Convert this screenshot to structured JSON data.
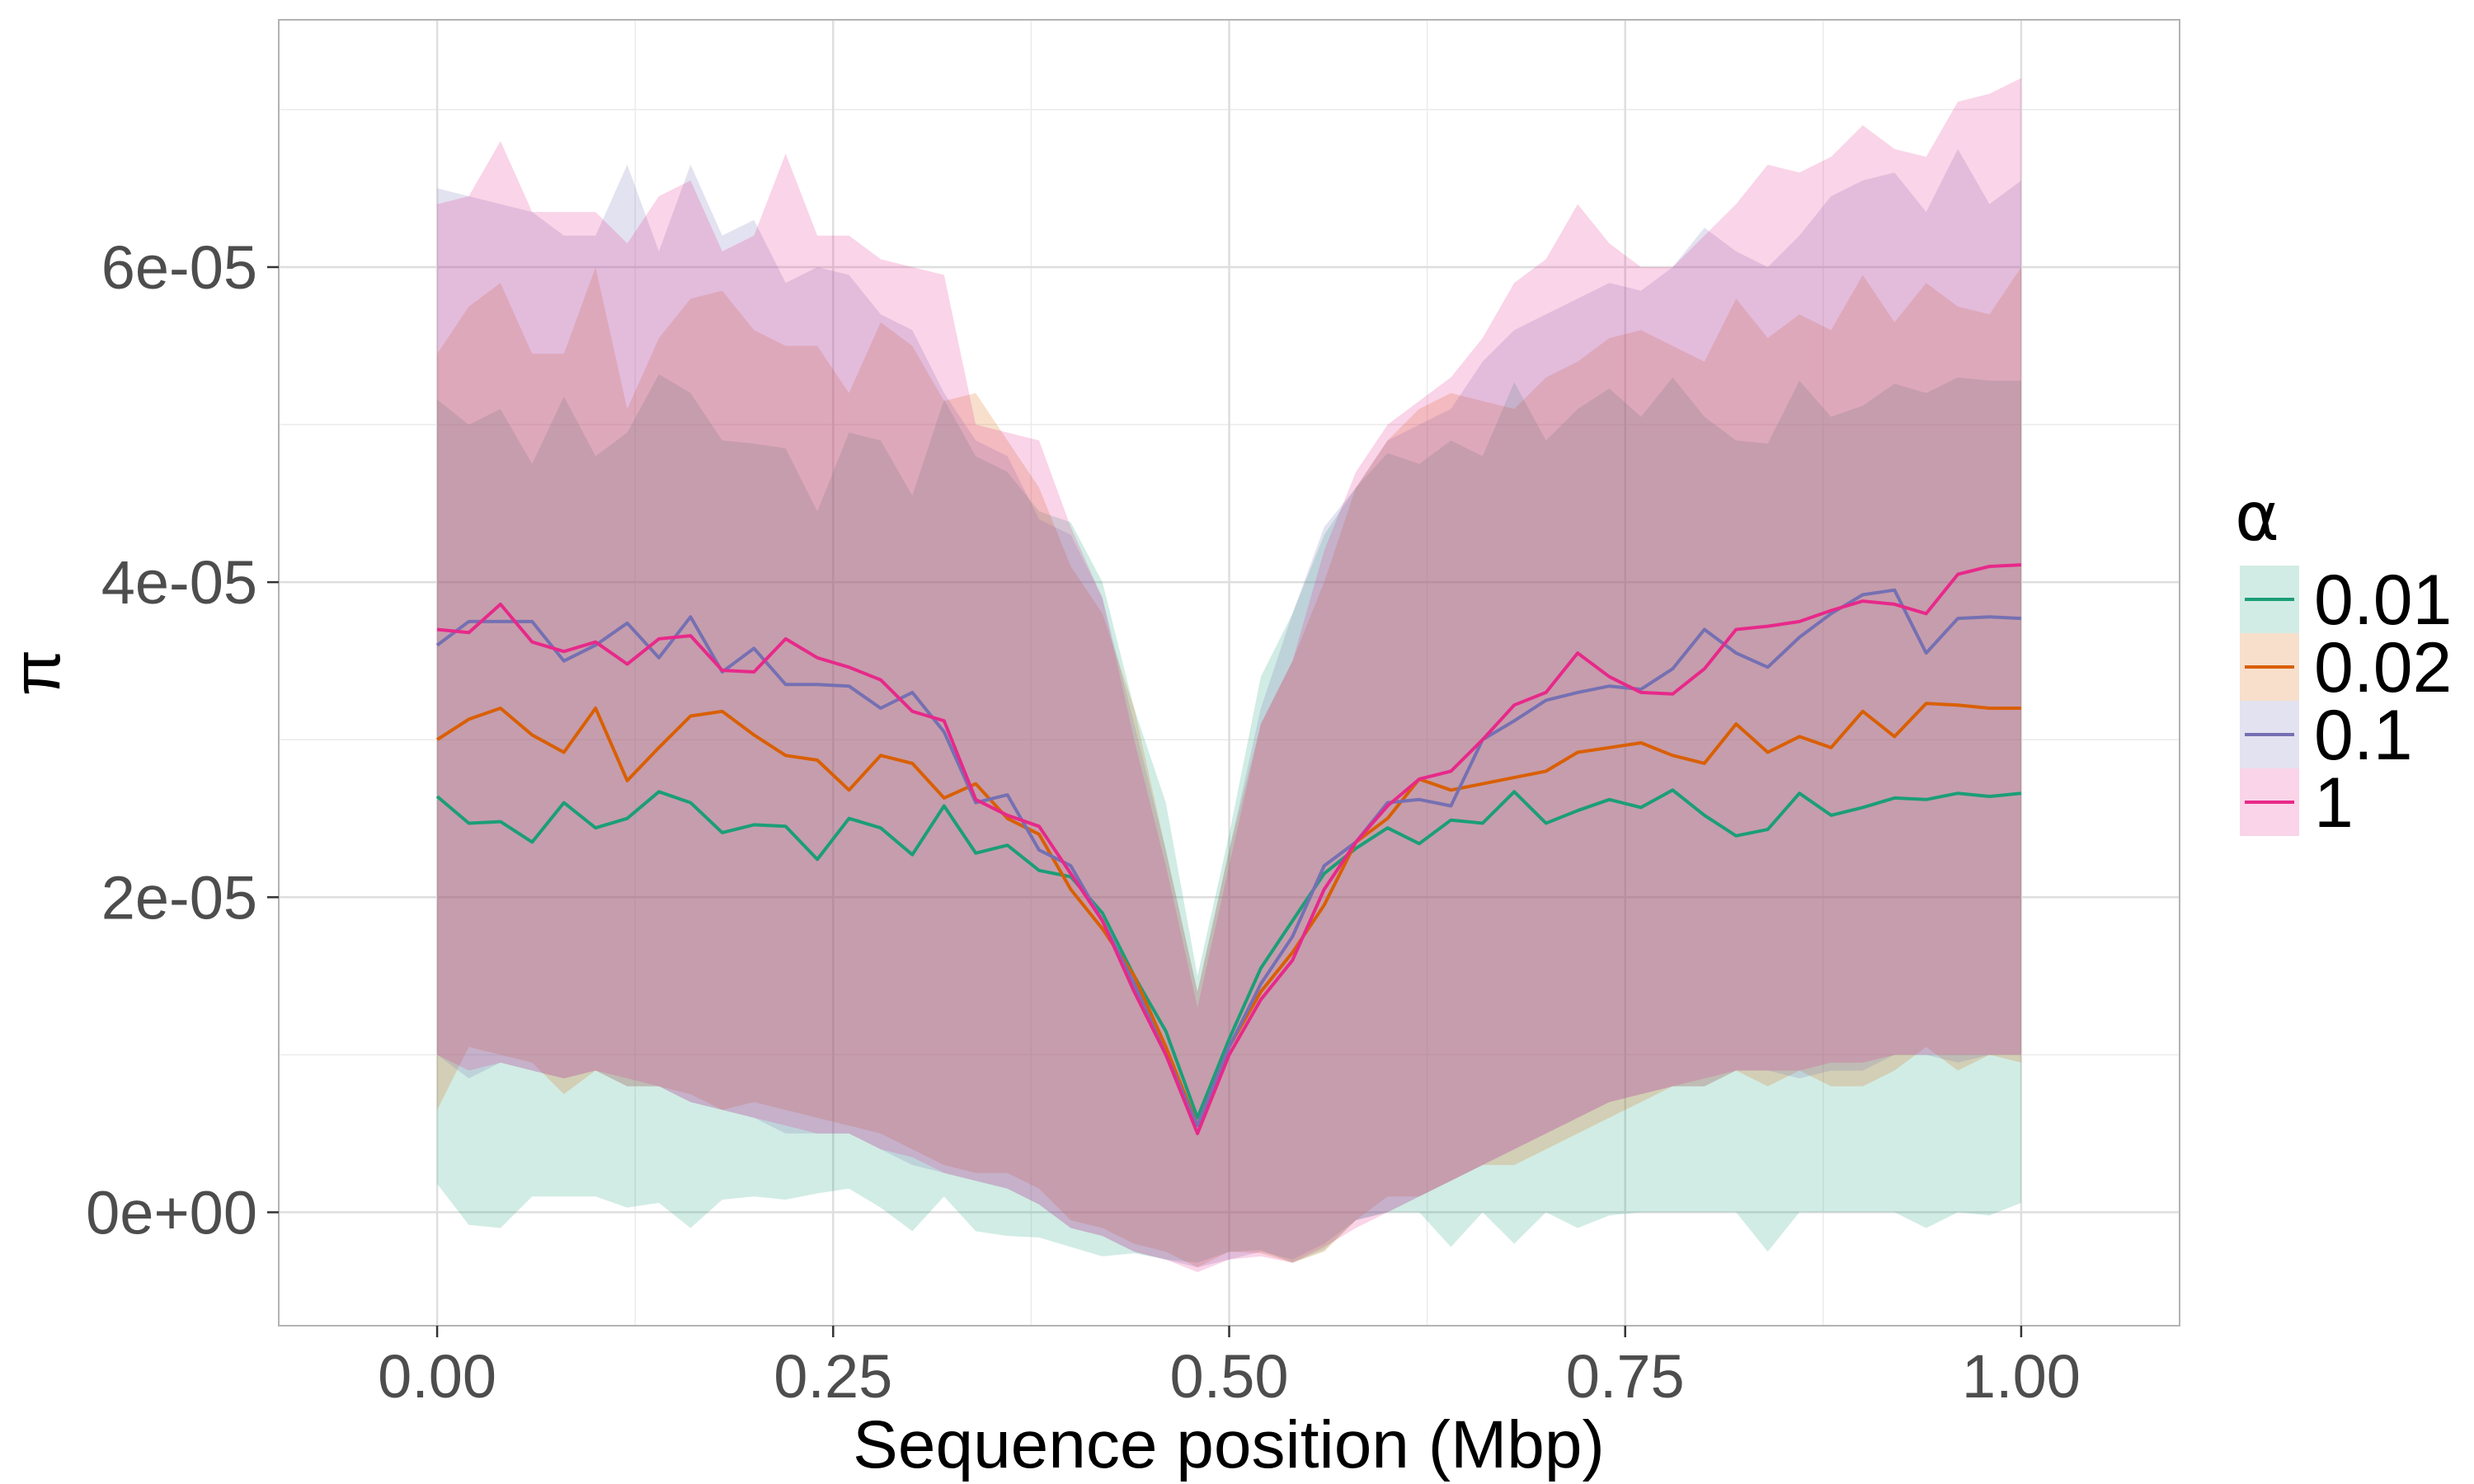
{
  "chart_data": {
    "type": "line",
    "title": "",
    "xlabel": "Sequence position (Mbp)",
    "ylabel": "π",
    "xlim": [
      -0.1,
      1.1
    ],
    "ylim": [
      -7.2e-06,
      7.57e-05
    ],
    "x_ticks": [
      0,
      0.25,
      0.5,
      0.75,
      1
    ],
    "x_tick_labels": [
      "0.00",
      "0.25",
      "0.50",
      "0.75",
      "1.00"
    ],
    "y_ticks": [
      0,
      2e-05,
      4e-05,
      6e-05
    ],
    "y_tick_labels": [
      "0e+00",
      "2e-05",
      "4e-05",
      "6e-05"
    ],
    "grid": true,
    "legend_title": "α",
    "legend_position": "right",
    "x": [
      0.0,
      0.02,
      0.04,
      0.06,
      0.08,
      0.1,
      0.12,
      0.14,
      0.16,
      0.18,
      0.2,
      0.22,
      0.24,
      0.26,
      0.28,
      0.3,
      0.32,
      0.34,
      0.36,
      0.38,
      0.4,
      0.42,
      0.44,
      0.46,
      0.48,
      0.5,
      0.52,
      0.54,
      0.56,
      0.58,
      0.6,
      0.62,
      0.64,
      0.66,
      0.68,
      0.7,
      0.72,
      0.74,
      0.76,
      0.78,
      0.8,
      0.82,
      0.84,
      0.86,
      0.88,
      0.9,
      0.92,
      0.94,
      0.96,
      0.98,
      1.0
    ],
    "series": [
      {
        "name": "0.01",
        "color": "#1b9e77",
        "values": [
          2.64e-05,
          2.47e-05,
          2.48e-05,
          2.35e-05,
          2.6e-05,
          2.44e-05,
          2.5e-05,
          2.67e-05,
          2.6e-05,
          2.41e-05,
          2.46e-05,
          2.45e-05,
          2.24e-05,
          2.5e-05,
          2.44e-05,
          2.27e-05,
          2.58e-05,
          2.28e-05,
          2.33e-05,
          2.17e-05,
          2.13e-05,
          1.9e-05,
          1.5e-05,
          1.15e-05,
          6e-06,
          1.1e-05,
          1.55e-05,
          1.85e-05,
          2.15e-05,
          2.31e-05,
          2.44e-05,
          2.34e-05,
          2.49e-05,
          2.47e-05,
          2.67e-05,
          2.47e-05,
          2.55e-05,
          2.62e-05,
          2.57e-05,
          2.68e-05,
          2.52e-05,
          2.39e-05,
          2.43e-05,
          2.66e-05,
          2.52e-05,
          2.57e-05,
          2.63e-05,
          2.62e-05,
          2.66e-05,
          2.64e-05,
          2.66e-05
        ],
        "lower": [
          1.8e-06,
          -8e-07,
          -1e-06,
          1e-06,
          1e-06,
          1e-06,
          3e-07,
          6e-07,
          -1e-06,
          8e-07,
          1e-06,
          8e-07,
          1.2e-06,
          1.5e-06,
          3e-07,
          -1.2e-06,
          1e-06,
          -1.2e-06,
          -1.5e-06,
          -1.6e-06,
          -2.2e-06,
          -2.8e-06,
          -2.6e-06,
          -3e-06,
          -3.2e-06,
          -2.5e-06,
          -2.4e-06,
          -3.2e-06,
          -2.4e-06,
          -5e-07,
          0.0,
          0.0,
          -2.2e-06,
          0.0,
          -2e-06,
          0.0,
          -1e-06,
          -2e-07,
          0.0,
          0.0,
          0.0,
          0.0,
          -2.5e-06,
          0.0,
          0.0,
          0.0,
          0.0,
          -1e-06,
          0.0,
          -2e-07,
          6e-07
        ],
        "upper": [
          5.16e-05,
          5e-05,
          5.1e-05,
          4.75e-05,
          5.18e-05,
          4.8e-05,
          4.95e-05,
          5.32e-05,
          5.2e-05,
          4.9e-05,
          4.88e-05,
          4.85e-05,
          4.45e-05,
          4.95e-05,
          4.9e-05,
          4.55e-05,
          5.16e-05,
          4.8e-05,
          4.7e-05,
          4.45e-05,
          4.38e-05,
          4e-05,
          3.2e-05,
          2.6e-05,
          1.5e-05,
          2.4e-05,
          3.4e-05,
          3.8e-05,
          4.3e-05,
          4.6e-05,
          4.82e-05,
          4.75e-05,
          4.9e-05,
          4.8e-05,
          5.27e-05,
          4.9e-05,
          5.1e-05,
          5.23e-05,
          5.05e-05,
          5.3e-05,
          5.05e-05,
          4.9e-05,
          4.88e-05,
          5.28e-05,
          5.05e-05,
          5.12e-05,
          5.26e-05,
          5.2e-05,
          5.3e-05,
          5.28e-05,
          5.28e-05
        ]
      },
      {
        "name": "0.02",
        "color": "#d95f02",
        "values": [
          3e-05,
          3.13e-05,
          3.2e-05,
          3.03e-05,
          2.92e-05,
          3.2e-05,
          2.74e-05,
          2.95e-05,
          3.15e-05,
          3.18e-05,
          3.03e-05,
          2.9e-05,
          2.87e-05,
          2.68e-05,
          2.9e-05,
          2.85e-05,
          2.63e-05,
          2.72e-05,
          2.5e-05,
          2.4e-05,
          2.05e-05,
          1.8e-05,
          1.5e-05,
          1.05e-05,
          5.5e-06,
          1.05e-05,
          1.4e-05,
          1.65e-05,
          1.95e-05,
          2.35e-05,
          2.5e-05,
          2.75e-05,
          2.68e-05,
          2.72e-05,
          2.76e-05,
          2.8e-05,
          2.92e-05,
          2.95e-05,
          2.98e-05,
          2.9e-05,
          2.85e-05,
          3.1e-05,
          2.92e-05,
          3.02e-05,
          2.95e-05,
          3.18e-05,
          3.02e-05,
          3.23e-05,
          3.22e-05,
          3.2e-05,
          3.2e-05
        ],
        "lower": [
          6.5e-06,
          1.05e-05,
          1e-05,
          9.5e-06,
          7.5e-06,
          9e-06,
          8e-06,
          8e-06,
          7.5e-06,
          6.5e-06,
          7e-06,
          6.5e-06,
          6e-06,
          5.5e-06,
          5e-06,
          4e-06,
          3e-06,
          2.5e-06,
          2.5e-06,
          1.5e-06,
          -5e-07,
          -1e-06,
          -2e-06,
          -2.5e-06,
          -3.5e-06,
          -2.5e-06,
          -2.6e-06,
          -3.2e-06,
          -2.5e-06,
          -5e-07,
          1e-06,
          1e-06,
          2e-06,
          3e-06,
          3e-06,
          4e-06,
          5e-06,
          6e-06,
          7e-06,
          8e-06,
          8e-06,
          9e-06,
          8e-06,
          9e-06,
          8e-06,
          8e-06,
          9e-06,
          1.05e-05,
          9e-06,
          1e-05,
          9.5e-06
        ],
        "upper": [
          5.45e-05,
          5.75e-05,
          5.9e-05,
          5.45e-05,
          5.45e-05,
          6e-05,
          5.1e-05,
          5.55e-05,
          5.8e-05,
          5.85e-05,
          5.6e-05,
          5.5e-05,
          5.5e-05,
          5.2e-05,
          5.65e-05,
          5.5e-05,
          5.15e-05,
          5.2e-05,
          4.9e-05,
          4.6e-05,
          4.1e-05,
          3.8e-05,
          3.2e-05,
          2.3e-05,
          1.4e-05,
          2.3e-05,
          3.1e-05,
          3.5e-05,
          4e-05,
          4.6e-05,
          4.9e-05,
          5.1e-05,
          5.2e-05,
          5.15e-05,
          5.1e-05,
          5.3e-05,
          5.4e-05,
          5.55e-05,
          5.6e-05,
          5.5e-05,
          5.4e-05,
          5.8e-05,
          5.55e-05,
          5.7e-05,
          5.6e-05,
          5.95e-05,
          5.65e-05,
          5.9e-05,
          5.75e-05,
          5.7e-05,
          6e-05
        ]
      },
      {
        "name": "0.1",
        "color": "#7570b3",
        "values": [
          3.6e-05,
          3.75e-05,
          3.75e-05,
          3.75e-05,
          3.5e-05,
          3.6e-05,
          3.74e-05,
          3.52e-05,
          3.78e-05,
          3.43e-05,
          3.58e-05,
          3.35e-05,
          3.35e-05,
          3.34e-05,
          3.2e-05,
          3.3e-05,
          3.05e-05,
          2.6e-05,
          2.65e-05,
          2.3e-05,
          2.2e-05,
          1.85e-05,
          1.45e-05,
          1e-05,
          5.5e-06,
          1.05e-05,
          1.45e-05,
          1.75e-05,
          2.2e-05,
          2.35e-05,
          2.6e-05,
          2.62e-05,
          2.58e-05,
          3e-05,
          3.12e-05,
          3.25e-05,
          3.3e-05,
          3.34e-05,
          3.32e-05,
          3.45e-05,
          3.7e-05,
          3.55e-05,
          3.46e-05,
          3.65e-05,
          3.8e-05,
          3.92e-05,
          3.95e-05,
          3.55e-05,
          3.77e-05,
          3.78e-05,
          3.77e-05
        ],
        "lower": [
          1e-05,
          8.5e-06,
          9.5e-06,
          9e-06,
          8.5e-06,
          9e-06,
          8e-06,
          8e-06,
          7e-06,
          6.5e-06,
          6e-06,
          5e-06,
          5e-06,
          5e-06,
          4e-06,
          3e-06,
          2.5e-06,
          2e-06,
          1.5e-06,
          5e-07,
          -1e-06,
          -1.5e-06,
          -2.5e-06,
          -3e-06,
          -3.5e-06,
          -3e-06,
          -2.5e-06,
          -3e-06,
          -2e-06,
          -5e-07,
          0.0,
          1e-06,
          2e-06,
          3e-06,
          4e-06,
          5e-06,
          6e-06,
          7e-06,
          7.5e-06,
          8e-06,
          8e-06,
          9e-06,
          9e-06,
          8.5e-06,
          9e-06,
          9e-06,
          1e-05,
          1e-05,
          9.5e-06,
          1e-05,
          1e-05
        ],
        "upper": [
          6.5e-05,
          6.45e-05,
          6.4e-05,
          6.35e-05,
          6.2e-05,
          6.2e-05,
          6.65e-05,
          6.1e-05,
          6.65e-05,
          6.2e-05,
          6.3e-05,
          5.9e-05,
          6e-05,
          5.95e-05,
          5.7e-05,
          5.6e-05,
          5.2e-05,
          4.9e-05,
          4.8e-05,
          4.4e-05,
          4.3e-05,
          3.9e-05,
          3.1e-05,
          2.3e-05,
          1.4e-05,
          2.3e-05,
          3.2e-05,
          3.8e-05,
          4.35e-05,
          4.6e-05,
          4.9e-05,
          5e-05,
          5.1e-05,
          5.4e-05,
          5.6e-05,
          5.7e-05,
          5.8e-05,
          5.9e-05,
          5.85e-05,
          6e-05,
          6.25e-05,
          6.1e-05,
          6e-05,
          6.2e-05,
          6.45e-05,
          6.55e-05,
          6.6e-05,
          6.35e-05,
          6.75e-05,
          6.4e-05,
          6.55e-05
        ]
      },
      {
        "name": "1",
        "color": "#e7298a",
        "values": [
          3.7e-05,
          3.68e-05,
          3.86e-05,
          3.62e-05,
          3.56e-05,
          3.62e-05,
          3.48e-05,
          3.64e-05,
          3.66e-05,
          3.44e-05,
          3.43e-05,
          3.64e-05,
          3.52e-05,
          3.46e-05,
          3.38e-05,
          3.18e-05,
          3.12e-05,
          2.62e-05,
          2.52e-05,
          2.45e-05,
          2.15e-05,
          1.85e-05,
          1.4e-05,
          1e-05,
          5e-06,
          1e-05,
          1.35e-05,
          1.6e-05,
          2.05e-05,
          2.35e-05,
          2.58e-05,
          2.75e-05,
          2.8e-05,
          3e-05,
          3.22e-05,
          3.3e-05,
          3.55e-05,
          3.4e-05,
          3.3e-05,
          3.29e-05,
          3.45e-05,
          3.7e-05,
          3.72e-05,
          3.75e-05,
          3.82e-05,
          3.88e-05,
          3.86e-05,
          3.8e-05,
          4.05e-05,
          4.1e-05,
          4.11e-05
        ],
        "lower": [
          1e-05,
          9e-06,
          9.5e-06,
          9e-06,
          8.5e-06,
          9e-06,
          8.5e-06,
          8e-06,
          7e-06,
          6.5e-06,
          6e-06,
          5.5e-06,
          5e-06,
          5e-06,
          4e-06,
          3.5e-06,
          2.5e-06,
          2e-06,
          1.5e-06,
          5e-07,
          -1e-06,
          -1.5e-06,
          -2.5e-06,
          -3e-06,
          -3.8e-06,
          -3e-06,
          -2.8e-06,
          -3.2e-06,
          -2.2e-06,
          -1e-06,
          0.0,
          1e-06,
          2e-06,
          3e-06,
          4e-06,
          5e-06,
          6e-06,
          7e-06,
          7.5e-06,
          8e-06,
          8.5e-06,
          9e-06,
          9e-06,
          9e-06,
          9.5e-06,
          9.5e-06,
          1e-05,
          1e-05,
          1e-05,
          1e-05,
          1e-05
        ],
        "upper": [
          6.4e-05,
          6.45e-05,
          6.8e-05,
          6.35e-05,
          6.35e-05,
          6.35e-05,
          6.15e-05,
          6.45e-05,
          6.55e-05,
          6.1e-05,
          6.2e-05,
          6.72e-05,
          6.2e-05,
          6.2e-05,
          6.05e-05,
          6e-05,
          5.95e-05,
          5e-05,
          4.95e-05,
          4.9e-05,
          4.35e-05,
          3.9e-05,
          3e-05,
          2.2e-05,
          1.3e-05,
          2.2e-05,
          3.1e-05,
          3.5e-05,
          4.2e-05,
          4.7e-05,
          5e-05,
          5.15e-05,
          5.3e-05,
          5.55e-05,
          5.9e-05,
          6.05e-05,
          6.4e-05,
          6.15e-05,
          6e-05,
          6e-05,
          6.2e-05,
          6.4e-05,
          6.65e-05,
          6.6e-05,
          6.7e-05,
          6.9e-05,
          6.75e-05,
          6.7e-05,
          7.05e-05,
          7.1e-05,
          7.2e-05
        ]
      }
    ]
  }
}
